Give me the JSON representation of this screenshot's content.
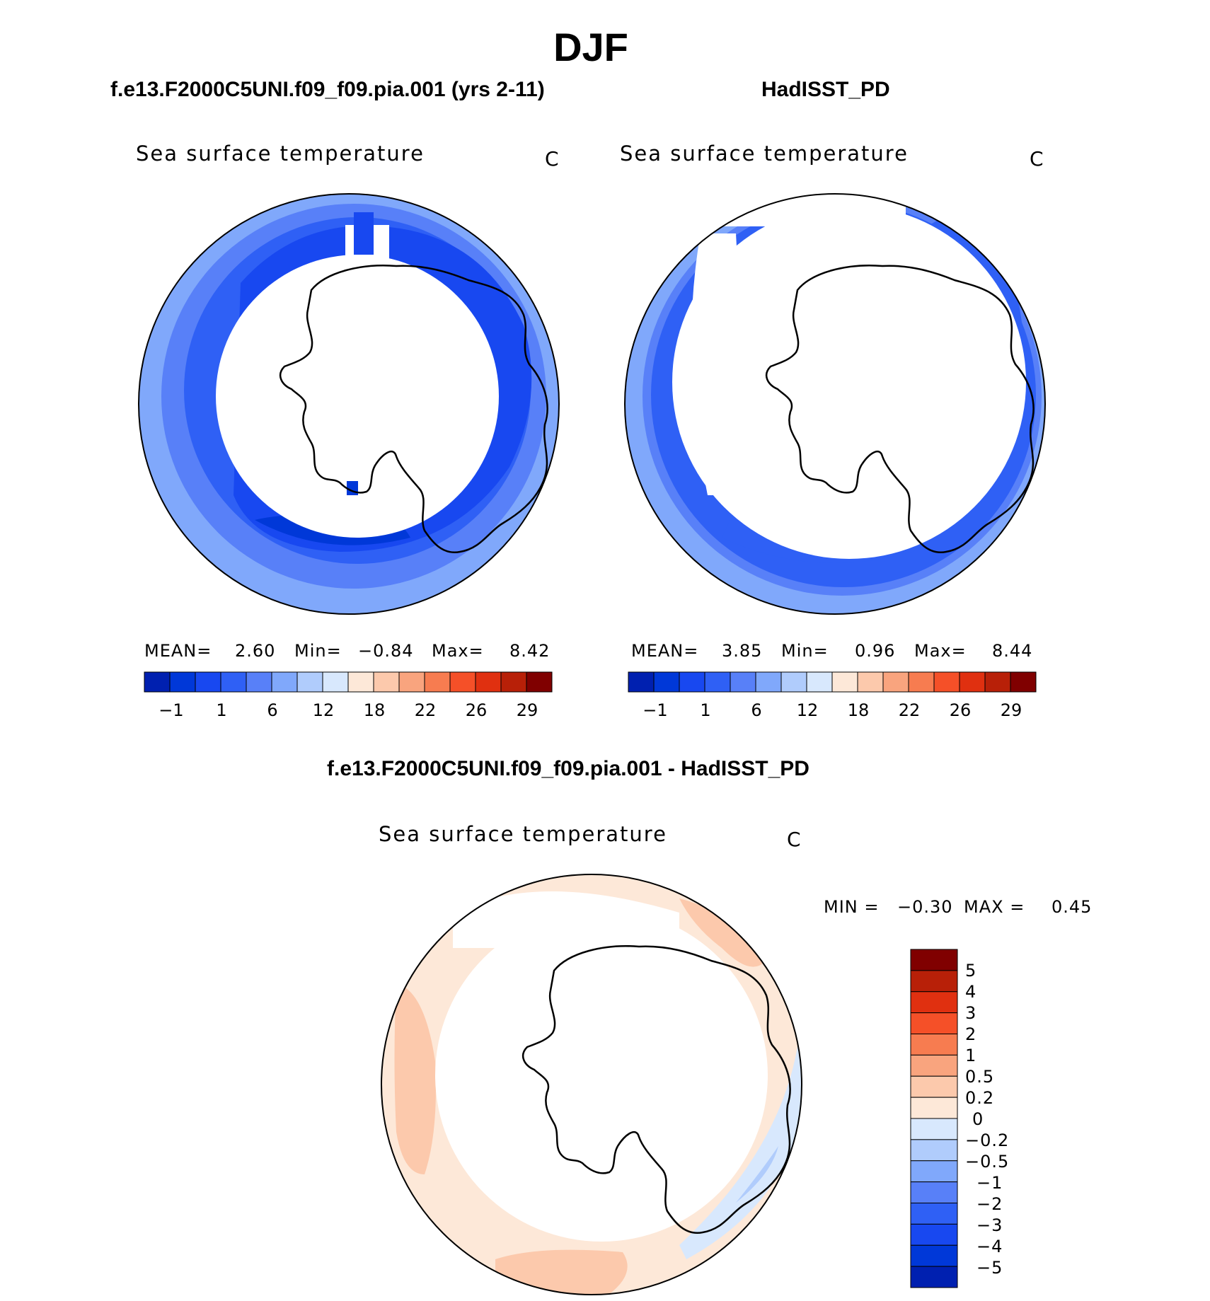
{
  "main_title": "DJF",
  "colors": {
    "abs_scale": [
      "#000080",
      "#0020b0",
      "#0038d8",
      "#1848f0",
      "#2f60f5",
      "#5880f8",
      "#80a8fb",
      "#b0ccfc",
      "#d8e8fd",
      "#fde8d8",
      "#fcc9ac",
      "#f9a47e",
      "#f77c50",
      "#f55028",
      "#e03010",
      "#b82008",
      "#800000"
    ],
    "diff_scale": [
      "#000080",
      "#0020b0",
      "#0038d8",
      "#1848f0",
      "#2f60f5",
      "#5880f8",
      "#80a8fb",
      "#b0ccfc",
      "#d8e8fd",
      "#fde8d8",
      "#fcc9ac",
      "#f9a47e",
      "#f77c50",
      "#f55028",
      "#e03010",
      "#b82008",
      "#800000"
    ]
  },
  "chart_data": [
    {
      "type": "heatmap",
      "id": "model",
      "title": "f.e13.F2000C5UNI.f09_f09.pia.001 (yrs 2-11)",
      "variable": "Sea surface temperature",
      "units": "C",
      "projection": "south-polar-stereographic",
      "stats": {
        "mean_label": "MEAN=",
        "mean": "2.60",
        "min_label": "Min=",
        "min": "−0.84",
        "max_label": "Max=",
        "max": "8.42"
      },
      "colorbar_ticks": [
        "−1",
        "1",
        "6",
        "12",
        "18",
        "22",
        "26",
        "29"
      ],
      "colorbar_bins": 16
    },
    {
      "type": "heatmap",
      "id": "obs",
      "title": "HadISST_PD",
      "variable": "Sea surface temperature",
      "units": "C",
      "projection": "south-polar-stereographic",
      "stats": {
        "mean_label": "MEAN=",
        "mean": "3.85",
        "min_label": "Min=",
        "min": "0.96",
        "max_label": "Max=",
        "max": "8.44"
      },
      "colorbar_ticks": [
        "−1",
        "1",
        "6",
        "12",
        "18",
        "22",
        "26",
        "29"
      ],
      "colorbar_bins": 16
    },
    {
      "type": "heatmap",
      "id": "diff",
      "title": "f.e13.F2000C5UNI.f09_f09.pia.001 - HadISST_PD",
      "variable": "Sea surface temperature",
      "units": "C",
      "projection": "south-polar-stereographic",
      "stats": {
        "min_label": "MIN =",
        "min": "−0.30",
        "max_label": "MAX =",
        "max": "0.45"
      },
      "colorbar_ticks": [
        "5",
        "4",
        "3",
        "2",
        "1",
        "0.5",
        "0.2",
        "0",
        "−0.2",
        "−0.5",
        "−1",
        "−2",
        "−3",
        "−4",
        "−5"
      ],
      "colorbar_bins": 16
    }
  ]
}
